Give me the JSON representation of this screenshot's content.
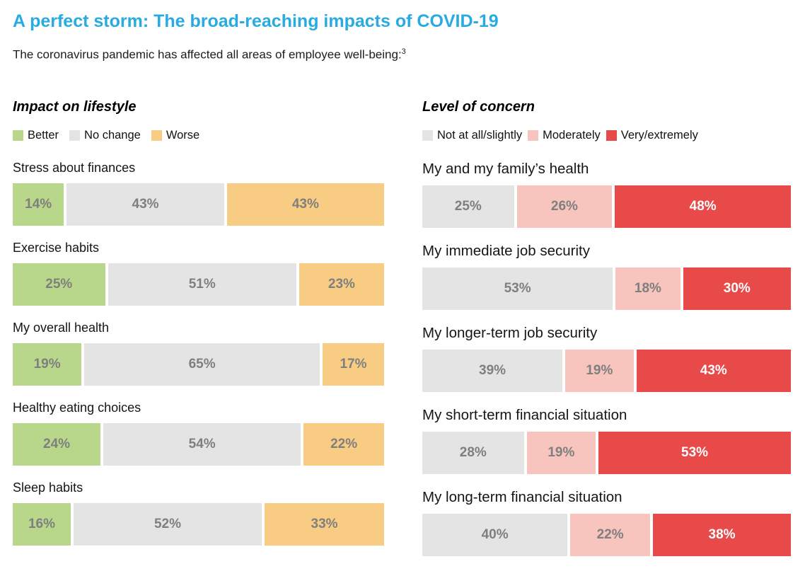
{
  "page": {
    "title": "A perfect storm: The broad-reaching impacts of COVID-19",
    "subtitle": "The coronavirus pandemic has affected all areas of employee well-being:",
    "footnote_marker": "3"
  },
  "colors": {
    "title_accent": "#29abe2",
    "better_green": "#b8d78b",
    "neutral_gray": "#e4e4e4",
    "worse_orange": "#f8cc83",
    "moderate_pink": "#f7c4be",
    "extreme_red": "#e84a4a",
    "value_text_gray": "#7f7f7f",
    "value_text_white": "#ffffff"
  },
  "chart_data": [
    {
      "type": "bar",
      "variant": "horizontal-stacked",
      "title": "Impact on lifestyle",
      "value_suffix": "%",
      "xlim": [
        0,
        100
      ],
      "legend_position": "top",
      "categories": [
        "Stress about finances",
        "Exercise habits",
        "My overall health",
        "Healthy eating choices",
        "Sleep habits"
      ],
      "series": [
        {
          "name": "Better",
          "color": "#b8d78b",
          "label_color": "#7f7f7f",
          "values": [
            14,
            25,
            19,
            24,
            16
          ]
        },
        {
          "name": "No change",
          "color": "#e4e4e4",
          "label_color": "#7f7f7f",
          "values": [
            43,
            51,
            65,
            54,
            52
          ]
        },
        {
          "name": "Worse",
          "color": "#f8cc83",
          "label_color": "#7f7f7f",
          "values": [
            43,
            23,
            17,
            22,
            33
          ]
        }
      ]
    },
    {
      "type": "bar",
      "variant": "horizontal-stacked",
      "title": "Level of concern",
      "value_suffix": "%",
      "xlim": [
        0,
        100
      ],
      "legend_position": "top",
      "categories": [
        "My and my family’s health",
        "My immediate job security",
        "My longer-term job security",
        "My short-term financial situation",
        "My long-term financial situation"
      ],
      "series": [
        {
          "name": "Not at all/slightly",
          "color": "#e4e4e4",
          "label_color": "#7f7f7f",
          "values": [
            25,
            53,
            39,
            28,
            40
          ]
        },
        {
          "name": "Moderately",
          "color": "#f7c4be",
          "label_color": "#7f7f7f",
          "values": [
            26,
            18,
            19,
            19,
            22
          ]
        },
        {
          "name": "Very/extremely",
          "color": "#e84a4a",
          "label_color": "#ffffff",
          "values": [
            48,
            30,
            43,
            53,
            38
          ]
        }
      ]
    }
  ]
}
